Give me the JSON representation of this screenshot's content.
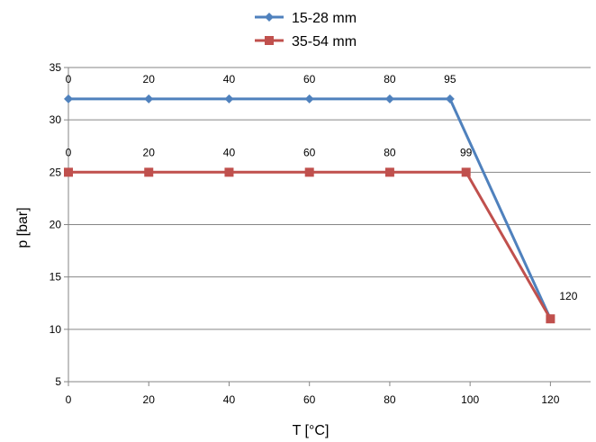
{
  "chart_data": {
    "type": "line",
    "xlabel": "T [°C]",
    "ylabel": "p [bar]",
    "xlim": [
      0,
      130
    ],
    "ylim": [
      5,
      35
    ],
    "xticks": [
      0,
      20,
      40,
      60,
      80,
      100,
      120
    ],
    "yticks": [
      5,
      10,
      15,
      20,
      25,
      30,
      35
    ],
    "grid": "horizontal",
    "legend": "top-center",
    "series": [
      {
        "name": "15-28 mm",
        "color": "#4F81BD",
        "marker": "diamond",
        "x": [
          0,
          20,
          40,
          60,
          80,
          95,
          120
        ],
        "y": [
          32,
          32,
          32,
          32,
          32,
          32,
          11
        ],
        "labels": [
          "0",
          "20",
          "40",
          "60",
          "80",
          "95",
          ""
        ]
      },
      {
        "name": "35-54 mm",
        "color": "#C0504D",
        "marker": "square",
        "x": [
          0,
          20,
          40,
          60,
          80,
          99,
          120
        ],
        "y": [
          25,
          25,
          25,
          25,
          25,
          25,
          11
        ],
        "labels": [
          "0",
          "20",
          "40",
          "60",
          "80",
          "99",
          "120"
        ]
      }
    ]
  }
}
